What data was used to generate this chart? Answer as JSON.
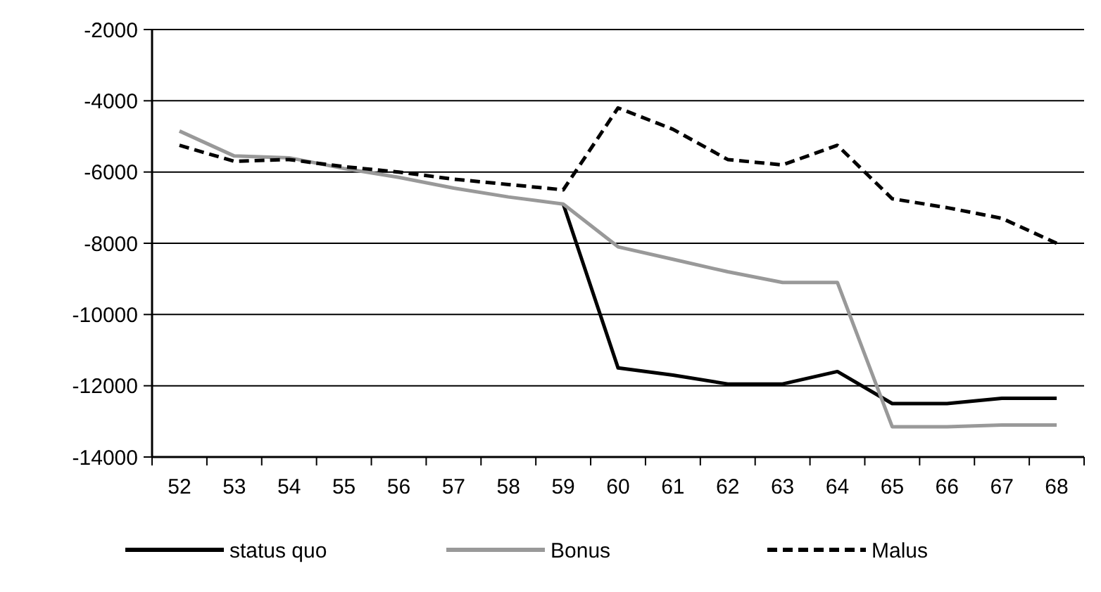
{
  "chart_data": {
    "type": "line",
    "categories": [
      "52",
      "53",
      "54",
      "55",
      "56",
      "57",
      "58",
      "59",
      "60",
      "61",
      "62",
      "63",
      "64",
      "65",
      "66",
      "67",
      "68"
    ],
    "ylim": [
      -14000,
      -2000
    ],
    "yticks": [
      -14000,
      -12000,
      -10000,
      -8000,
      -6000,
      -4000,
      -2000
    ],
    "grid": "y",
    "legend": "bottom",
    "marker": "none",
    "series": [
      {
        "name": "status quo",
        "color": "#000000",
        "line_style": "solid",
        "values": [
          null,
          null,
          null,
          null,
          null,
          null,
          null,
          -6900,
          -11500,
          -11700,
          -11950,
          -11950,
          -11600,
          -12500,
          -12500,
          -12350,
          -12350
        ]
      },
      {
        "name": "Bonus",
        "color": "#999999",
        "line_style": "solid",
        "values": [
          -4850,
          -5550,
          -5600,
          -5900,
          -6150,
          -6450,
          -6700,
          -6900,
          -8100,
          -8450,
          -8800,
          -9100,
          -9100,
          -13150,
          -13150,
          -13100,
          -13100
        ]
      },
      {
        "name": "Malus",
        "color": "#000000",
        "line_style": "dashed",
        "values": [
          -5250,
          -5700,
          -5650,
          -5850,
          -6000,
          -6200,
          -6350,
          -6500,
          -4200,
          -4800,
          -5650,
          -5800,
          -5250,
          -6750,
          -7000,
          -7300,
          -8000
        ]
      }
    ]
  }
}
